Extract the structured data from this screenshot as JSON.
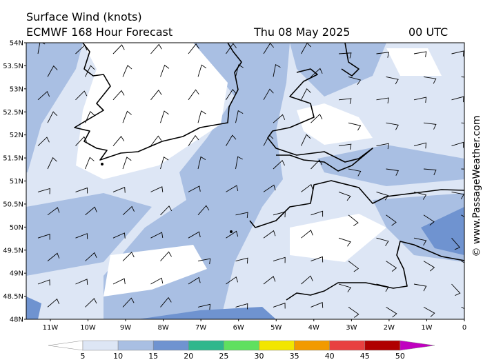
{
  "header": {
    "title": "Surface Wind (knots)",
    "subtitle": "ECMWF 168 Hour Forecast",
    "valid_time": "Thu 08 May 2025",
    "hour": "00 UTC"
  },
  "latitude_labels": [
    "54N",
    "53.5N",
    "53N",
    "52.5N",
    "52N",
    "51.5N",
    "51N",
    "50.5N",
    "50N",
    "49.5N",
    "49N",
    "48.5N",
    "48N"
  ],
  "longitude_labels": [
    "11W",
    "10W",
    "9W",
    "8W",
    "7W",
    "6W",
    "5W",
    "4W",
    "3W",
    "2W",
    "1W",
    "0"
  ],
  "colorbar": {
    "ticks": [
      5,
      10,
      15,
      20,
      25,
      30,
      35,
      40,
      45,
      50
    ],
    "colors": [
      "#ffffff",
      "#dde6f5",
      "#a9bfe3",
      "#6f93d0",
      "#2fb78c",
      "#5fe05f",
      "#f2e600",
      "#f29a00",
      "#e84040",
      "#b00000",
      "#c000c0"
    ]
  },
  "copyright": "© www.PassageWeather.com"
}
